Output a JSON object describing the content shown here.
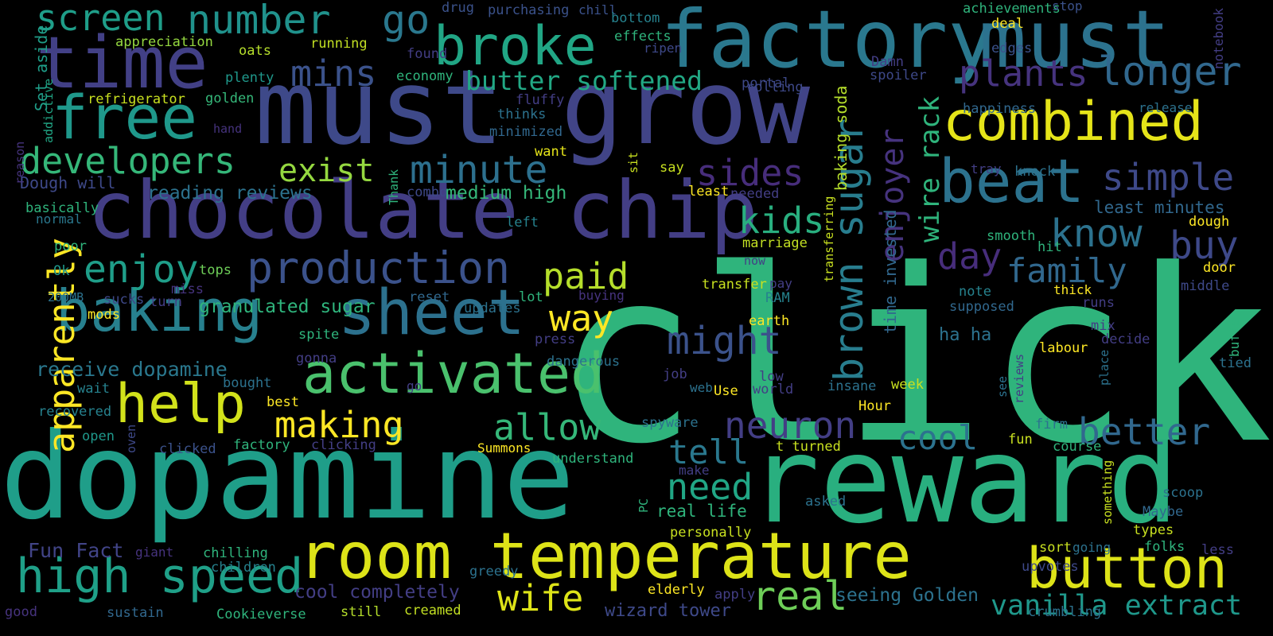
{
  "cloud": {
    "palette": {
      "purple": "#482878",
      "indigo": "#3e4989",
      "blue": "#31688e",
      "teal": "#26828e",
      "green": "#1f9e89",
      "sea": "#35b779",
      "lime": "#6ece58",
      "yellowgreen": "#b5de2b",
      "yellow": "#fde725"
    },
    "words": [
      {
        "text": "dopamine",
        "color": "#1f9e89"
      },
      {
        "text": "reward",
        "color": "#29af7f"
      },
      {
        "text": "click",
        "color": "#2fb47c"
      },
      {
        "text": "must",
        "color": "#3e4989"
      },
      {
        "text": "grow",
        "color": "#414487"
      },
      {
        "text": "factory",
        "color": "#2a788e"
      },
      {
        "text": "must",
        "color": "#2c728e"
      },
      {
        "text": "chocolate chip",
        "color": "#433e85"
      },
      {
        "text": "room temperature",
        "color": "#dde318"
      },
      {
        "text": "time",
        "color": "#424086"
      },
      {
        "text": "free",
        "color": "#1f988b"
      },
      {
        "text": "broke",
        "color": "#21a685"
      },
      {
        "text": "baking",
        "color": "#27808e"
      },
      {
        "text": "sheet",
        "color": "#2c718e"
      },
      {
        "text": "activated",
        "color": "#4ac16d"
      },
      {
        "text": "help",
        "color": "#d2e21b"
      },
      {
        "text": "high speed",
        "color": "#1fa088"
      },
      {
        "text": "button",
        "color": "#dde318"
      },
      {
        "text": "combined",
        "color": "#e5e419"
      },
      {
        "text": "beat",
        "color": "#2c728e"
      },
      {
        "text": "production",
        "color": "#3b528b"
      },
      {
        "text": "number",
        "color": "#20928c"
      },
      {
        "text": "go",
        "color": "#2a788e"
      },
      {
        "text": "screen",
        "color": "#1f9e89"
      },
      {
        "text": "developers",
        "color": "#35b779"
      },
      {
        "text": "brown sugar",
        "color": "#287d8e"
      },
      {
        "text": "enjoyer",
        "color": "#46337e"
      },
      {
        "text": "wire rack",
        "color": "#2fb47c"
      },
      {
        "text": "plants",
        "color": "#46337e"
      },
      {
        "text": "longer",
        "color": "#31688e"
      },
      {
        "text": "butter softened",
        "color": "#22a884"
      },
      {
        "text": "mins",
        "color": "#3b528b"
      },
      {
        "text": "exist",
        "color": "#95d840"
      },
      {
        "text": "minute",
        "color": "#2d708e"
      },
      {
        "text": "sides",
        "color": "#472d7b"
      },
      {
        "text": "simple",
        "color": "#3e4989"
      },
      {
        "text": "kids",
        "color": "#29af7f"
      },
      {
        "text": "know",
        "color": "#2c728e"
      },
      {
        "text": "buy",
        "color": "#3e4989"
      },
      {
        "text": "day",
        "color": "#472d7b"
      },
      {
        "text": "family",
        "color": "#31688e"
      },
      {
        "text": "enjoy",
        "color": "#1f9e89"
      },
      {
        "text": "paid",
        "color": "#b5de2b"
      },
      {
        "text": "way",
        "color": "#fde725"
      },
      {
        "text": "might",
        "color": "#3b528b"
      },
      {
        "text": "neuron",
        "color": "#433e85"
      },
      {
        "text": "cool",
        "color": "#2c728e"
      },
      {
        "text": "better",
        "color": "#31688e"
      },
      {
        "text": "tell",
        "color": "#2a788e"
      },
      {
        "text": "need",
        "color": "#21a685"
      },
      {
        "text": "real",
        "color": "#6ece58"
      },
      {
        "text": "wife",
        "color": "#dde318"
      },
      {
        "text": "apparently",
        "color": "#fde725"
      },
      {
        "text": "making",
        "color": "#fde725"
      },
      {
        "text": "allow",
        "color": "#35b779"
      },
      {
        "text": "vanilla extract",
        "color": "#1f988b"
      },
      {
        "text": "baking soda",
        "color": "#b5de2b"
      },
      {
        "text": "time invested",
        "color": "#31688e"
      },
      {
        "text": "receive dopamine",
        "color": "#2a788e"
      },
      {
        "text": "granulated sugar",
        "color": "#2fb47c"
      },
      {
        "text": "reading reviews",
        "color": "#2c728e"
      },
      {
        "text": "medium high",
        "color": "#35b779"
      },
      {
        "text": "Dough will",
        "color": "#3e4989"
      },
      {
        "text": "Fun Fact",
        "color": "#414487"
      },
      {
        "text": "cool completely",
        "color": "#433e85"
      },
      {
        "text": "seeing Golden",
        "color": "#2c728e"
      },
      {
        "text": "wizard tower",
        "color": "#3e4989"
      },
      {
        "text": "real life",
        "color": "#2fb47c"
      },
      {
        "text": "least minutes",
        "color": "#31688e"
      },
      {
        "text": "ha ha",
        "color": "#2c728e"
      },
      {
        "text": "Set aside",
        "color": "#1f9e89"
      },
      {
        "text": "appreciation",
        "color": "#95d840"
      },
      {
        "text": "running",
        "color": "#c2df23"
      },
      {
        "text": "oats",
        "color": "#b5de2b"
      },
      {
        "text": "plenty",
        "color": "#1f988b"
      },
      {
        "text": "refrigerator",
        "color": "#c8e020"
      },
      {
        "text": "golden",
        "color": "#35b779"
      },
      {
        "text": "addictive",
        "color": "#21a685"
      },
      {
        "text": "reason",
        "color": "#46337e"
      },
      {
        "text": "hand",
        "color": "#46337e"
      },
      {
        "text": "basically",
        "color": "#2fb47c"
      },
      {
        "text": "normal",
        "color": "#2a788e"
      },
      {
        "text": "poor",
        "color": "#2fb47c"
      },
      {
        "text": "Ok",
        "color": "#1f988b"
      },
      {
        "text": "tops",
        "color": "#6ece58"
      },
      {
        "text": "miss",
        "color": "#46337e"
      },
      {
        "text": "200MB",
        "color": "#2c728e"
      },
      {
        "text": "sucks",
        "color": "#3e4989"
      },
      {
        "text": "turn",
        "color": "#433e85"
      },
      {
        "text": "mods",
        "color": "#fde725"
      },
      {
        "text": "spite",
        "color": "#2fb47c"
      },
      {
        "text": "gonna",
        "color": "#433e85"
      },
      {
        "text": "wait",
        "color": "#26828e"
      },
      {
        "text": "bought",
        "color": "#2c728e"
      },
      {
        "text": "recovered",
        "color": "#26828e"
      },
      {
        "text": "best",
        "color": "#fde725"
      },
      {
        "text": "open",
        "color": "#1f988b"
      },
      {
        "text": "oven",
        "color": "#3e4989"
      },
      {
        "text": "clicked",
        "color": "#3b528b"
      },
      {
        "text": "factory",
        "color": "#2fb47c"
      },
      {
        "text": "clicking",
        "color": "#433e85"
      },
      {
        "text": "chilling",
        "color": "#2fb47c"
      },
      {
        "text": "giant",
        "color": "#46337e"
      },
      {
        "text": "children",
        "color": "#26828e"
      },
      {
        "text": "good",
        "color": "#46337e"
      },
      {
        "text": "sustain",
        "color": "#31688e"
      },
      {
        "text": "Cookieverse",
        "color": "#2fb47c"
      },
      {
        "text": "still",
        "color": "#b5de2b"
      },
      {
        "text": "creamed",
        "color": "#c2df23"
      },
      {
        "text": "greedy",
        "color": "#2c728e"
      },
      {
        "text": "drug",
        "color": "#3b528b"
      },
      {
        "text": "purchasing",
        "color": "#3b528b"
      },
      {
        "text": "chill",
        "color": "#3b528b"
      },
      {
        "text": "bottom",
        "color": "#26828e"
      },
      {
        "text": "effects",
        "color": "#2fb47c"
      },
      {
        "text": "ripen",
        "color": "#3e4989"
      },
      {
        "text": "found",
        "color": "#433e85"
      },
      {
        "text": "economy",
        "color": "#2fb47c"
      },
      {
        "text": "fluffy",
        "color": "#433e85"
      },
      {
        "text": "thinks",
        "color": "#2c728e"
      },
      {
        "text": "minimized",
        "color": "#31688e"
      },
      {
        "text": "want",
        "color": "#e5e419"
      },
      {
        "text": "say",
        "color": "#c8e020"
      },
      {
        "text": "least",
        "color": "#fde725"
      },
      {
        "text": "needed",
        "color": "#433e85"
      },
      {
        "text": "sit",
        "color": "#c8e020"
      },
      {
        "text": "Thank",
        "color": "#2fb47c"
      },
      {
        "text": "combo",
        "color": "#3e4989"
      },
      {
        "text": "left",
        "color": "#26828e"
      },
      {
        "text": "reset",
        "color": "#31688e"
      },
      {
        "text": "updates",
        "color": "#2c728e"
      },
      {
        "text": "lot",
        "color": "#2fb47c"
      },
      {
        "text": "buying",
        "color": "#46337e"
      },
      {
        "text": "press",
        "color": "#433e85"
      },
      {
        "text": "dangerous",
        "color": "#2c728e"
      },
      {
        "text": "job",
        "color": "#433e85"
      },
      {
        "text": "go",
        "color": "#433e85"
      },
      {
        "text": "web",
        "color": "#2c728e"
      },
      {
        "text": "Use",
        "color": "#fde725"
      },
      {
        "text": "spyware",
        "color": "#2c728e"
      },
      {
        "text": "Summons",
        "color": "#fde725"
      },
      {
        "text": "understand",
        "color": "#2fb47c"
      },
      {
        "text": "make",
        "color": "#433e85"
      },
      {
        "text": "PC",
        "color": "#2fb47c"
      },
      {
        "text": "personally",
        "color": "#c8e020"
      },
      {
        "text": "elderly",
        "color": "#fde725"
      },
      {
        "text": "apply",
        "color": "#433e85"
      },
      {
        "text": "asked",
        "color": "#2c728e"
      },
      {
        "text": "portal",
        "color": "#3e4989"
      },
      {
        "text": "rolling",
        "color": "#3e4989"
      },
      {
        "text": "marriage",
        "color": "#c2df23"
      },
      {
        "text": "now",
        "color": "#433e85"
      },
      {
        "text": "transfer",
        "color": "#c8e020"
      },
      {
        "text": "pay",
        "color": "#433e85"
      },
      {
        "text": "RAM",
        "color": "#26828e"
      },
      {
        "text": "transferring",
        "color": "#c8e020"
      },
      {
        "text": "earth",
        "color": "#fde725"
      },
      {
        "text": "low",
        "color": "#433e85"
      },
      {
        "text": "world",
        "color": "#433e85"
      },
      {
        "text": "insane",
        "color": "#2c728e"
      },
      {
        "text": "Hour",
        "color": "#fde725"
      },
      {
        "text": "week",
        "color": "#c8e020"
      },
      {
        "text": "t turned",
        "color": "#c8e020"
      },
      {
        "text": "Damn",
        "color": "#433e85"
      },
      {
        "text": "spoiler",
        "color": "#3e4989"
      },
      {
        "text": "achievements",
        "color": "#2fb47c"
      },
      {
        "text": "stop",
        "color": "#3b528b"
      },
      {
        "text": "deal",
        "color": "#fde725"
      },
      {
        "text": "edges",
        "color": "#3b528b"
      },
      {
        "text": "notebook",
        "color": "#433e85"
      },
      {
        "text": "happiness",
        "color": "#31688e"
      },
      {
        "text": "release",
        "color": "#2c728e"
      },
      {
        "text": "tray",
        "color": "#433e85"
      },
      {
        "text": "knock",
        "color": "#2c728e"
      },
      {
        "text": "dough",
        "color": "#fde725"
      },
      {
        "text": "smooth",
        "color": "#2fb47c"
      },
      {
        "text": "hit",
        "color": "#2fb47c"
      },
      {
        "text": "door",
        "color": "#fde725"
      },
      {
        "text": "note",
        "color": "#26828e"
      },
      {
        "text": "thick",
        "color": "#fde725"
      },
      {
        "text": "middle",
        "color": "#3e4989"
      },
      {
        "text": "supposed",
        "color": "#31688e"
      },
      {
        "text": "runs",
        "color": "#433e85"
      },
      {
        "text": "mix",
        "color": "#433e85"
      },
      {
        "text": "decide",
        "color": "#433e85"
      },
      {
        "text": "buffs",
        "color": "#2fb47c"
      },
      {
        "text": "labour",
        "color": "#fde725"
      },
      {
        "text": "tied",
        "color": "#2c728e"
      },
      {
        "text": "see",
        "color": "#2c728e"
      },
      {
        "text": "place",
        "color": "#2c728e"
      },
      {
        "text": "reviews",
        "color": "#433e85"
      },
      {
        "text": "firm",
        "color": "#2c728e"
      },
      {
        "text": "fun",
        "color": "#c8e020"
      },
      {
        "text": "course",
        "color": "#2fb47c"
      },
      {
        "text": "something",
        "color": "#c8e020"
      },
      {
        "text": "scoop",
        "color": "#2c728e"
      },
      {
        "text": "Maybe",
        "color": "#31688e"
      },
      {
        "text": "types",
        "color": "#c8e020"
      },
      {
        "text": "sort",
        "color": "#c8e020"
      },
      {
        "text": "going",
        "color": "#2c728e"
      },
      {
        "text": "folks",
        "color": "#2fb47c"
      },
      {
        "text": "less",
        "color": "#433e85"
      },
      {
        "text": "upvotes",
        "color": "#3e4989"
      },
      {
        "text": "crumbling",
        "color": "#2c728e"
      }
    ]
  }
}
